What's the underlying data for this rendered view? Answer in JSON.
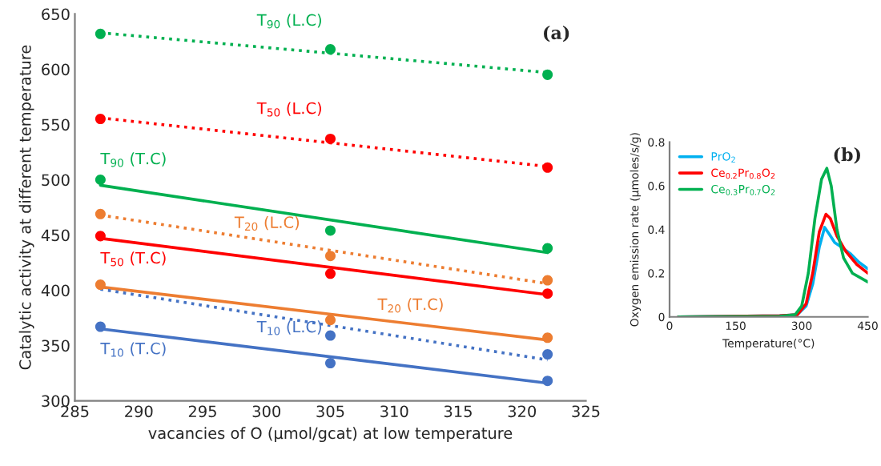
{
  "chart_data": [
    {
      "type": "scatter",
      "xlabel": "vacancies of O (µmol/gcat) at low temperature",
      "ylabel": "Catalytic activity at different temperature",
      "annotations": [
        "(a)"
      ],
      "xlim": [
        285,
        325
      ],
      "xticks": [
        285,
        290,
        295,
        300,
        305,
        310,
        315,
        320,
        325
      ],
      "ylim": [
        300,
        650
      ],
      "yticks": [
        300,
        350,
        400,
        450,
        500,
        550,
        600,
        650
      ],
      "grid": false,
      "legend": false,
      "marker": "none",
      "x": [
        287,
        305,
        322
      ],
      "series": [
        {
          "type": "line",
          "name": "T$_{90}$ (L.C)",
          "color": "#00b050",
          "line_style": "dotted",
          "x": [
            287,
            322
          ],
          "values": [
            633,
            597
          ]
        },
        {
          "type": "scatter",
          "marker": "circle",
          "color": "#00b050",
          "values": [
            632,
            618,
            595
          ]
        },
        {
          "type": "line",
          "name": "T$_{50}$ (L.C)",
          "color": "#ff0000",
          "line_style": "dotted",
          "x": [
            287,
            322
          ],
          "values": [
            556,
            512
          ]
        },
        {
          "type": "scatter",
          "marker": "circle",
          "color": "#ff0000",
          "values": [
            555,
            537,
            511
          ]
        },
        {
          "type": "line",
          "name": "T$_{90}$ (T.C)",
          "color": "#00b050",
          "line_style": "solid",
          "x": [
            287,
            322
          ],
          "values": [
            495,
            434
          ]
        },
        {
          "type": "scatter",
          "marker": "circle",
          "color": "#00b050",
          "values": [
            500,
            454,
            438
          ]
        },
        {
          "type": "line",
          "name": "T$_{20}$ (L.C)",
          "color": "#ed7d31",
          "line_style": "dotted",
          "x": [
            287,
            322
          ],
          "values": [
            468,
            406
          ]
        },
        {
          "type": "scatter",
          "marker": "circle",
          "color": "#ed7d31",
          "values": [
            469,
            431,
            409
          ]
        },
        {
          "type": "line",
          "name": "T$_{50}$ (T.C)",
          "color": "#ff0000",
          "line_style": "solid",
          "x": [
            287,
            322
          ],
          "values": [
            447,
            396
          ]
        },
        {
          "type": "scatter",
          "marker": "circle",
          "color": "#ff0000",
          "values": [
            449,
            415,
            397
          ]
        },
        {
          "type": "line",
          "name": "T$_{20}$ (T.C)",
          "color": "#ed7d31",
          "line_style": "solid",
          "x": [
            287,
            322
          ],
          "values": [
            403,
            355
          ]
        },
        {
          "type": "scatter",
          "marker": "circle",
          "color": "#ed7d31",
          "values": [
            405,
            373,
            357
          ]
        },
        {
          "type": "line",
          "name": "T$_{10}$ (L.C)",
          "color": "#4472c4",
          "line_style": "dotted",
          "x": [
            287,
            322
          ],
          "values": [
            401,
            337
          ]
        },
        {
          "type": "scatter",
          "marker": "circle",
          "color": "#4472c4",
          "values": [
            null,
            359,
            342
          ]
        },
        {
          "type": "line",
          "name": "T$_{10}$ (T.C)",
          "color": "#4472c4",
          "line_style": "solid",
          "x": [
            287,
            322
          ],
          "values": [
            365,
            316
          ]
        },
        {
          "type": "scatter",
          "marker": "circle",
          "color": "#4472c4",
          "values": [
            367,
            334,
            318
          ]
        }
      ]
    },
    {
      "type": "line",
      "xlabel": "Temperature(°C)",
      "ylabel": "Oxygen emission rate (µmoles/s/g)",
      "annotations": [
        "(b)"
      ],
      "xlim": [
        0,
        450
      ],
      "xticks": [
        0,
        150,
        300,
        450
      ],
      "ylim": [
        0,
        0.8
      ],
      "yticks": [
        0,
        0.2,
        0.4,
        0.6,
        0.8
      ],
      "grid": false,
      "legend": "top left",
      "marker": "none",
      "series": [
        {
          "name": "PrO$_{2}$",
          "color": "#00b0f0",
          "x": [
            20,
            250,
            290,
            310,
            325,
            340,
            352,
            362,
            375,
            390,
            410,
            430,
            450
          ],
          "values": [
            0,
            0.005,
            0.01,
            0.05,
            0.15,
            0.32,
            0.41,
            0.38,
            0.34,
            0.32,
            0.29,
            0.25,
            0.22
          ]
        },
        {
          "name": "Ce$_{0.2}$Pr$_{0.8}$O$_{2}$",
          "color": "#ff0000",
          "x": [
            20,
            250,
            290,
            310,
            325,
            340,
            355,
            365,
            380,
            400,
            425,
            450
          ],
          "values": [
            0,
            0.005,
            0.01,
            0.06,
            0.2,
            0.39,
            0.47,
            0.45,
            0.37,
            0.3,
            0.24,
            0.2
          ]
        },
        {
          "name": "Ce$_{0.3}$Pr$_{0.7}$O$_{2}$",
          "color": "#00b050",
          "x": [
            20,
            250,
            285,
            300,
            315,
            330,
            345,
            357,
            367,
            380,
            395,
            415,
            450
          ],
          "values": [
            0,
            0.003,
            0.01,
            0.05,
            0.2,
            0.45,
            0.63,
            0.68,
            0.6,
            0.4,
            0.27,
            0.2,
            0.16
          ]
        }
      ]
    }
  ]
}
